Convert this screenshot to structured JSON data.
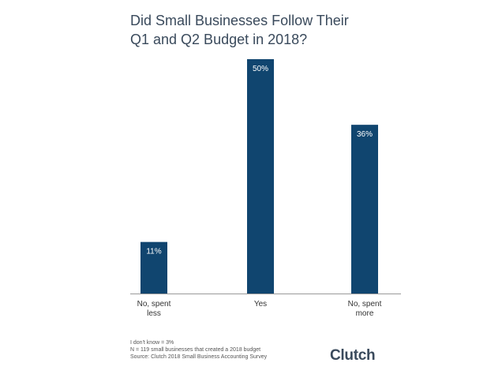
{
  "chart_data": {
    "type": "bar",
    "title_lines": [
      "Did Small Businesses Follow Their",
      "Q1 and Q2 Budget in 2018?"
    ],
    "categories": [
      [
        "No, spent",
        "less"
      ],
      [
        "Yes"
      ],
      [
        "No, spent",
        "more"
      ]
    ],
    "values": [
      11,
      50,
      36
    ],
    "value_labels": [
      "11%",
      "50%",
      "36%"
    ],
    "ylim": [
      0,
      50
    ],
    "grid": false,
    "bar_color": "#10456f"
  },
  "footnotes": [
    "I don't know = 3%",
    "N = 119 small businesses that created a 2018 budget",
    "Source: Clutch 2018 Small Business Accounting Survey"
  ],
  "logo_text": "Clutch"
}
